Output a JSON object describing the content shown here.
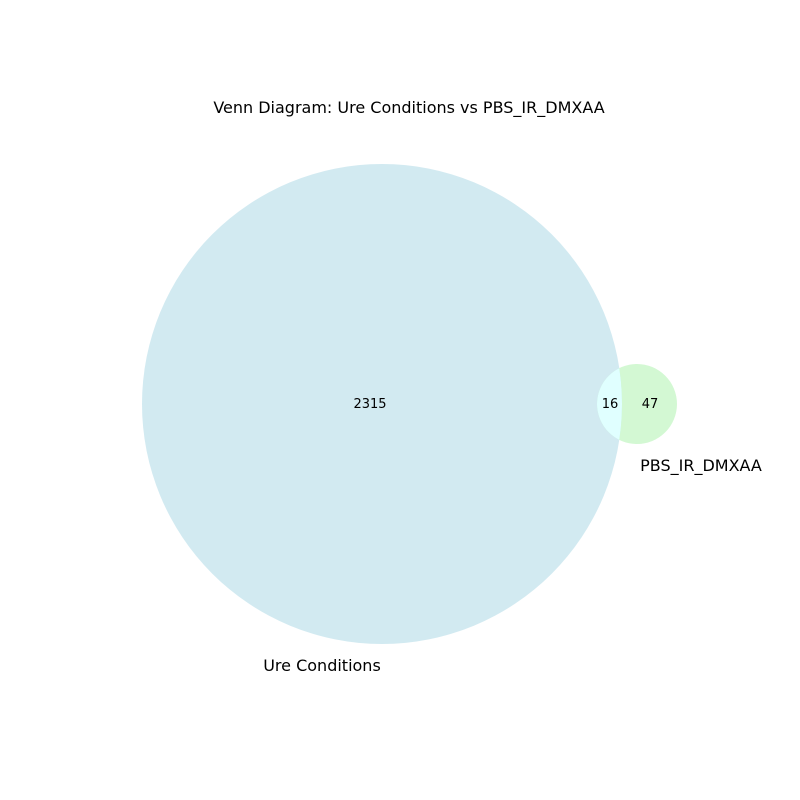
{
  "chart_data": {
    "type": "venn",
    "title": "Venn Diagram: Ure Conditions vs PBS_IR_DMXAA",
    "sets": [
      {
        "name": "Ure Conditions",
        "only_count": "2315",
        "color": "#add8e6"
      },
      {
        "name": "PBS_IR_DMXAA",
        "only_count": "47",
        "color": "#90ee90"
      }
    ],
    "intersection": {
      "count": "16",
      "color": "#e0ffff"
    }
  }
}
